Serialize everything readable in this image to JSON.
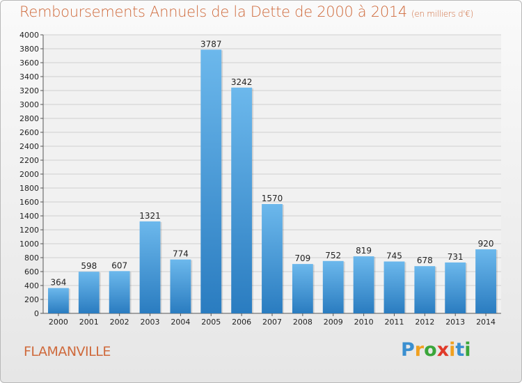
{
  "title": "Remboursements Annuels de la Dette de 2000 à 2014",
  "subtitle": "(en milliers d'€)",
  "commune": "FLAMANVILLE",
  "logo": {
    "letters": [
      "P",
      "r",
      "o",
      "x",
      "i",
      "t",
      "i"
    ],
    "colors": [
      "#3a8fd0",
      "#f0a020",
      "#3aa63a",
      "#e03a2a",
      "#f0a020",
      "#3a8fd0",
      "#3aa63a"
    ]
  },
  "colors": {
    "bar_top": "#6cb8ec",
    "bar_bottom": "#2a7cc0",
    "title": "#cf6a3c",
    "grid": "#d0d0d0"
  },
  "chart_data": {
    "type": "bar",
    "title": "Remboursements Annuels de la Dette de 2000 à 2014",
    "subtitle": "(en milliers d'€)",
    "categories": [
      "2000",
      "2001",
      "2002",
      "2003",
      "2004",
      "2005",
      "2006",
      "2007",
      "2008",
      "2009",
      "2010",
      "2011",
      "2012",
      "2013",
      "2014"
    ],
    "values": [
      364,
      598,
      607,
      1321,
      774,
      3787,
      3242,
      1570,
      709,
      752,
      819,
      745,
      678,
      731,
      920
    ],
    "ylim": [
      0,
      4000
    ],
    "yticks": [
      0,
      200,
      400,
      600,
      800,
      1000,
      1200,
      1400,
      1600,
      1800,
      2000,
      2200,
      2400,
      2600,
      2800,
      3000,
      3200,
      3400,
      3600,
      3800,
      4000
    ],
    "grid": true,
    "xlabel": "",
    "ylabel": ""
  }
}
